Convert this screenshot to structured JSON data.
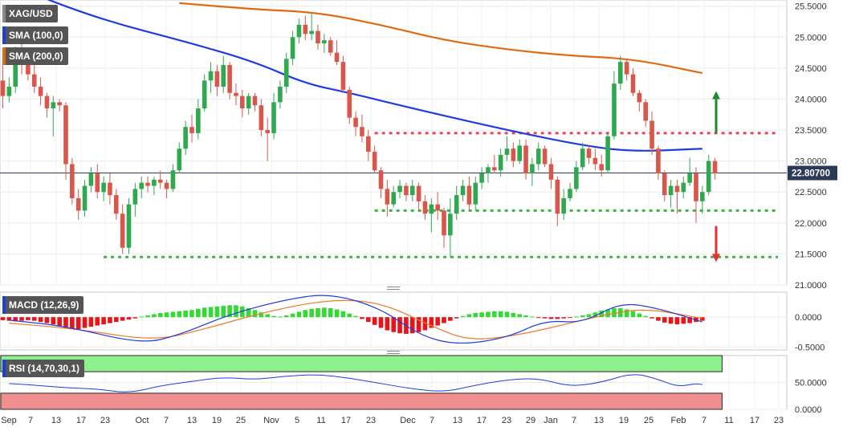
{
  "chart_data": [
    {
      "type": "candlestick",
      "title": "XAG/USD",
      "last_price_label": "22.80700",
      "y_ticks": [
        "25.5000",
        "25.0000",
        "24.5000",
        "24.0000",
        "23.5000",
        "23.0000",
        "22.5000",
        "22.0000",
        "21.5000",
        "21.0000"
      ],
      "ylim": [
        21.0,
        25.6
      ],
      "x_ticks": [
        "Sep",
        "7",
        "13",
        "17",
        "23",
        "Oct",
        "7",
        "13",
        "19",
        "25",
        "Nov",
        "5",
        "11",
        "17",
        "23",
        "Dec",
        "7",
        "13",
        "17",
        "23",
        "29",
        "Jan",
        "7",
        "13",
        "19",
        "25",
        "Feb",
        "7",
        "11",
        "17",
        "23"
      ],
      "candles": [
        [
          24.3,
          24.55,
          23.85,
          24.05
        ],
        [
          24.05,
          24.35,
          23.95,
          24.2
        ],
        [
          24.2,
          24.85,
          24.1,
          24.7
        ],
        [
          24.7,
          24.9,
          24.4,
          24.55
        ],
        [
          24.55,
          24.7,
          24.3,
          24.4
        ],
        [
          24.4,
          24.55,
          24.1,
          24.2
        ],
        [
          24.2,
          24.35,
          23.9,
          24.05
        ],
        [
          24.05,
          24.1,
          23.7,
          23.85
        ],
        [
          23.85,
          24.05,
          23.4,
          23.95
        ],
        [
          23.95,
          24.0,
          23.8,
          23.9
        ],
        [
          23.9,
          23.95,
          22.7,
          22.95
        ],
        [
          22.95,
          23.05,
          22.3,
          22.4
        ],
        [
          22.4,
          22.55,
          22.05,
          22.2
        ],
        [
          22.2,
          22.7,
          22.1,
          22.6
        ],
        [
          22.6,
          22.9,
          22.5,
          22.8
        ],
        [
          22.8,
          22.95,
          22.4,
          22.5
        ],
        [
          22.5,
          22.75,
          22.35,
          22.65
        ],
        [
          22.65,
          22.8,
          22.3,
          22.45
        ],
        [
          22.45,
          22.55,
          22.05,
          22.15
        ],
        [
          22.15,
          22.3,
          21.5,
          21.6
        ],
        [
          21.6,
          22.4,
          21.5,
          22.3
        ],
        [
          22.3,
          22.65,
          22.1,
          22.55
        ],
        [
          22.55,
          22.75,
          22.4,
          22.65
        ],
        [
          22.65,
          22.75,
          22.5,
          22.6
        ],
        [
          22.6,
          22.75,
          22.45,
          22.7
        ],
        [
          22.7,
          22.85,
          22.55,
          22.65
        ],
        [
          22.65,
          22.7,
          22.4,
          22.55
        ],
        [
          22.55,
          22.95,
          22.5,
          22.85
        ],
        [
          22.85,
          23.3,
          22.8,
          23.2
        ],
        [
          23.2,
          23.65,
          23.1,
          23.55
        ],
        [
          23.55,
          23.75,
          23.3,
          23.45
        ],
        [
          23.45,
          24.0,
          23.35,
          23.85
        ],
        [
          23.85,
          24.4,
          23.8,
          24.3
        ],
        [
          24.3,
          24.6,
          24.1,
          24.45
        ],
        [
          24.45,
          24.55,
          24.05,
          24.2
        ],
        [
          24.2,
          24.7,
          24.1,
          24.55
        ],
        [
          24.55,
          24.6,
          24.0,
          24.1
        ],
        [
          24.1,
          24.25,
          23.9,
          24.05
        ],
        [
          24.05,
          24.15,
          23.7,
          23.85
        ],
        [
          23.85,
          24.1,
          23.75,
          24.05
        ],
        [
          24.05,
          24.1,
          23.8,
          23.9
        ],
        [
          23.9,
          24.0,
          23.4,
          23.5
        ],
        [
          23.5,
          23.7,
          23.0,
          23.45
        ],
        [
          23.45,
          24.1,
          23.35,
          23.95
        ],
        [
          23.95,
          24.3,
          23.85,
          24.2
        ],
        [
          24.2,
          24.75,
          24.1,
          24.65
        ],
        [
          24.65,
          25.1,
          24.55,
          25.0
        ],
        [
          25.0,
          25.3,
          24.9,
          25.2
        ],
        [
          25.2,
          25.35,
          24.95,
          25.05
        ],
        [
          25.05,
          25.4,
          24.95,
          25.1
        ],
        [
          25.1,
          25.2,
          24.8,
          24.9
        ],
        [
          24.9,
          25.05,
          24.75,
          24.95
        ],
        [
          24.95,
          25.0,
          24.7,
          24.75
        ],
        [
          24.75,
          24.95,
          24.55,
          24.6
        ],
        [
          24.6,
          24.7,
          24.1,
          24.15
        ],
        [
          24.15,
          24.2,
          23.6,
          23.7
        ],
        [
          23.7,
          23.8,
          23.4,
          23.55
        ],
        [
          23.55,
          23.75,
          23.3,
          23.4
        ],
        [
          23.4,
          23.5,
          23.0,
          23.15
        ],
        [
          23.15,
          23.25,
          22.8,
          22.85
        ],
        [
          22.85,
          22.9,
          22.4,
          22.55
        ],
        [
          22.55,
          22.7,
          22.1,
          22.3
        ],
        [
          22.3,
          22.6,
          22.25,
          22.5
        ],
        [
          22.5,
          22.7,
          22.4,
          22.6
        ],
        [
          22.6,
          22.65,
          22.35,
          22.45
        ],
        [
          22.45,
          22.7,
          22.35,
          22.6
        ],
        [
          22.6,
          22.65,
          22.2,
          22.35
        ],
        [
          22.35,
          22.45,
          22.05,
          22.15
        ],
        [
          22.15,
          22.4,
          21.85,
          22.3
        ],
        [
          22.3,
          22.5,
          22.05,
          22.2
        ],
        [
          22.2,
          22.25,
          21.6,
          21.8
        ],
        [
          21.8,
          22.4,
          21.45,
          22.15
        ],
        [
          22.15,
          22.6,
          22.05,
          22.45
        ],
        [
          22.45,
          22.7,
          22.35,
          22.6
        ],
        [
          22.6,
          22.75,
          22.2,
          22.3
        ],
        [
          22.3,
          22.75,
          22.2,
          22.65
        ],
        [
          22.65,
          22.9,
          22.55,
          22.8
        ],
        [
          22.8,
          22.95,
          22.65,
          22.9
        ],
        [
          22.9,
          23.1,
          22.8,
          22.85
        ],
        [
          22.85,
          23.2,
          22.75,
          23.1
        ],
        [
          23.1,
          23.4,
          23.0,
          23.2
        ],
        [
          23.2,
          23.3,
          22.9,
          23.0
        ],
        [
          23.0,
          23.35,
          22.95,
          23.25
        ],
        [
          23.25,
          23.35,
          22.7,
          22.8
        ],
        [
          22.8,
          23.05,
          22.6,
          22.95
        ],
        [
          22.95,
          23.3,
          22.85,
          23.2
        ],
        [
          23.2,
          23.25,
          22.9,
          22.95
        ],
        [
          22.95,
          23.05,
          22.55,
          22.7
        ],
        [
          22.7,
          22.75,
          21.95,
          22.15
        ],
        [
          22.15,
          22.55,
          22.05,
          22.4
        ],
        [
          22.4,
          22.65,
          22.35,
          22.55
        ],
        [
          22.55,
          23.0,
          22.5,
          22.9
        ],
        [
          22.9,
          23.3,
          22.85,
          23.2
        ],
        [
          23.2,
          23.25,
          22.95,
          23.05
        ],
        [
          23.05,
          23.2,
          22.85,
          22.95
        ],
        [
          22.95,
          23.1,
          22.75,
          22.85
        ],
        [
          22.85,
          23.45,
          22.8,
          23.4
        ],
        [
          23.4,
          24.45,
          23.35,
          24.25
        ],
        [
          24.25,
          24.7,
          24.15,
          24.6
        ],
        [
          24.6,
          24.65,
          24.3,
          24.4
        ],
        [
          24.4,
          24.5,
          24.05,
          24.1
        ],
        [
          24.1,
          24.15,
          23.8,
          23.95
        ],
        [
          23.95,
          24.0,
          23.55,
          23.65
        ],
        [
          23.65,
          23.8,
          23.1,
          23.2
        ],
        [
          23.2,
          23.25,
          22.7,
          22.8
        ],
        [
          22.8,
          22.85,
          22.35,
          22.45
        ],
        [
          22.45,
          22.7,
          22.25,
          22.6
        ],
        [
          22.6,
          22.7,
          22.15,
          22.5
        ],
        [
          22.5,
          22.75,
          22.4,
          22.65
        ],
        [
          22.65,
          23.05,
          22.6,
          22.8
        ],
        [
          22.8,
          22.9,
          22.0,
          22.35
        ],
        [
          22.35,
          22.6,
          22.15,
          22.5
        ],
        [
          22.5,
          23.1,
          22.45,
          23.0
        ],
        [
          23.0,
          23.05,
          22.7,
          22.8
        ]
      ],
      "sma100": [
        [
          1,
          25.85
        ],
        [
          15,
          25.3
        ],
        [
          30,
          24.9
        ],
        [
          40,
          24.6
        ],
        [
          48,
          24.25
        ],
        [
          55,
          24.1
        ],
        [
          65,
          23.85
        ],
        [
          80,
          23.5
        ],
        [
          92,
          23.25
        ],
        [
          100,
          23.15
        ],
        [
          111,
          23.2
        ]
      ],
      "sma200": [
        [
          28,
          25.55
        ],
        [
          40,
          25.45
        ],
        [
          50,
          25.4
        ],
        [
          60,
          25.2
        ],
        [
          70,
          24.95
        ],
        [
          80,
          24.8
        ],
        [
          90,
          24.7
        ],
        [
          100,
          24.65
        ],
        [
          111,
          24.42
        ]
      ],
      "levels": [
        {
          "value": 23.45,
          "color": "#e8435a",
          "from": 59,
          "to": 123
        },
        {
          "value": 22.2,
          "color": "#3db24a",
          "from": 59,
          "to": 123
        },
        {
          "value": 21.45,
          "color": "#3db24a",
          "from": 16,
          "to": 123
        }
      ],
      "last_price": 22.807,
      "arrows": [
        {
          "direction": "up",
          "color": "#1f8b2c",
          "from": 23.45,
          "to": 24.0
        },
        {
          "direction": "down",
          "color": "#e62e2e",
          "from": 21.95,
          "to": 21.5
        }
      ]
    },
    {
      "type": "macd",
      "title": "MACD (12,26,9)",
      "y_ticks": [
        "0.0000",
        "-0.5000"
      ],
      "ylim": [
        -0.55,
        0.42
      ],
      "histogram": [
        -0.05,
        -0.06,
        -0.07,
        -0.06,
        -0.05,
        -0.06,
        -0.08,
        -0.1,
        -0.12,
        -0.15,
        -0.18,
        -0.19,
        -0.2,
        -0.18,
        -0.16,
        -0.14,
        -0.12,
        -0.1,
        -0.08,
        -0.06,
        -0.04,
        -0.02,
        0.01,
        0.03,
        0.05,
        0.07,
        0.08,
        0.09,
        0.1,
        0.11,
        0.12,
        0.14,
        0.16,
        0.17,
        0.18,
        0.19,
        0.2,
        0.2,
        0.18,
        0.15,
        0.12,
        0.08,
        0.05,
        0.02,
        0.01,
        0.03,
        0.06,
        0.09,
        0.12,
        0.14,
        0.15,
        0.16,
        0.15,
        0.13,
        0.1,
        0.06,
        0.02,
        -0.03,
        -0.08,
        -0.13,
        -0.18,
        -0.22,
        -0.25,
        -0.27,
        -0.28,
        -0.27,
        -0.25,
        -0.22,
        -0.18,
        -0.14,
        -0.1,
        -0.06,
        -0.02,
        0.02,
        0.05,
        0.07,
        0.08,
        0.09,
        0.1,
        0.1,
        0.09,
        0.07,
        0.05,
        0.03,
        0.01,
        -0.01,
        -0.02,
        -0.03,
        -0.03,
        -0.02,
        -0.01,
        0.01,
        0.03,
        0.05,
        0.08,
        0.11,
        0.13,
        0.15,
        0.15,
        0.13,
        0.1,
        0.06,
        0.02,
        -0.02,
        -0.06,
        -0.09,
        -0.11,
        -0.12,
        -0.11,
        -0.1,
        -0.08,
        -0.06
      ],
      "macd": [
        [
          1,
          -0.05
        ],
        [
          10,
          -0.15
        ],
        [
          22,
          -0.45
        ],
        [
          28,
          -0.3
        ],
        [
          36,
          0.05
        ],
        [
          45,
          0.3
        ],
        [
          52,
          0.4
        ],
        [
          60,
          0.15
        ],
        [
          66,
          -0.3
        ],
        [
          72,
          -0.47
        ],
        [
          80,
          -0.35
        ],
        [
          86,
          -0.05
        ],
        [
          92,
          -0.1
        ],
        [
          98,
          0.25
        ],
        [
          104,
          0.15
        ],
        [
          111,
          -0.08
        ]
      ],
      "signal": [
        [
          1,
          -0.1
        ],
        [
          12,
          -0.2
        ],
        [
          24,
          -0.4
        ],
        [
          32,
          -0.2
        ],
        [
          42,
          0.1
        ],
        [
          52,
          0.3
        ],
        [
          60,
          0.25
        ],
        [
          68,
          -0.15
        ],
        [
          74,
          -0.4
        ],
        [
          82,
          -0.3
        ],
        [
          90,
          -0.1
        ],
        [
          96,
          0.05
        ],
        [
          102,
          0.15
        ],
        [
          111,
          -0.02
        ]
      ]
    },
    {
      "type": "rsi",
      "title": "RSI (14,70,30,1)",
      "y_ticks": [
        "50.0000",
        "0.0000"
      ],
      "ylim": [
        0,
        100
      ],
      "values": [
        [
          1,
          48
        ],
        [
          5,
          45
        ],
        [
          10,
          40
        ],
        [
          15,
          38
        ],
        [
          20,
          30
        ],
        [
          25,
          44
        ],
        [
          30,
          52
        ],
        [
          35,
          60
        ],
        [
          40,
          55
        ],
        [
          45,
          62
        ],
        [
          50,
          65
        ],
        [
          55,
          58
        ],
        [
          60,
          48
        ],
        [
          65,
          38
        ],
        [
          70,
          32
        ],
        [
          75,
          45
        ],
        [
          80,
          55
        ],
        [
          85,
          58
        ],
        [
          90,
          42
        ],
        [
          95,
          50
        ],
        [
          100,
          68
        ],
        [
          104,
          56
        ],
        [
          107,
          42
        ],
        [
          110,
          48
        ],
        [
          111,
          46
        ]
      ]
    }
  ]
}
